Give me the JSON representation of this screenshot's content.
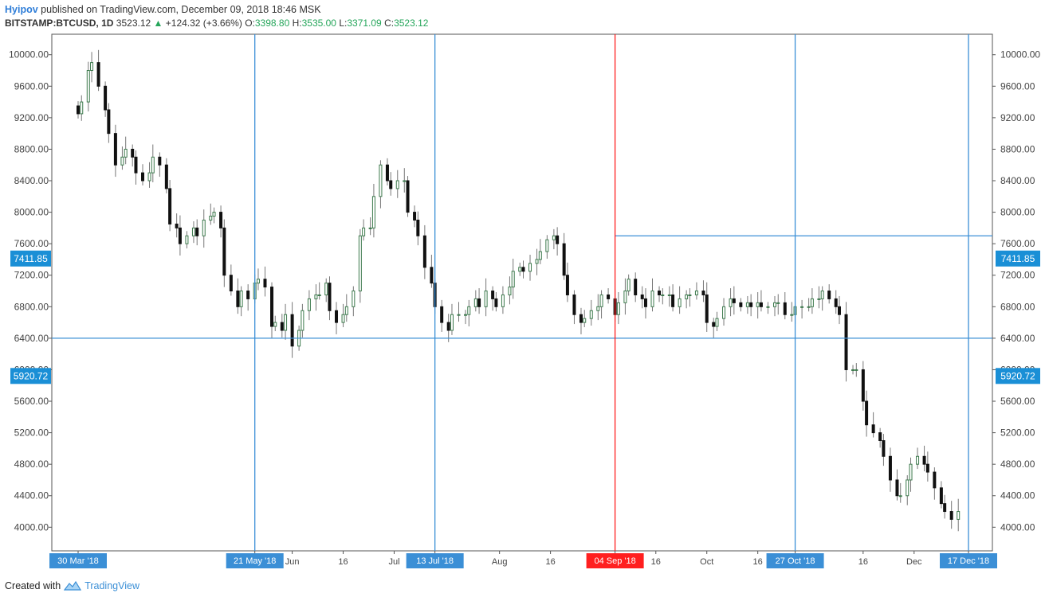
{
  "header": {
    "author": "Hyipov",
    "published_text": " published on TradingView.com, December 09, 2018 18:46 MSK",
    "symbol": "BITSTAMP:BTCUSD, 1D",
    "last": "3523.12",
    "arrow": "▲",
    "change": "+124.32 (+3.66%)",
    "o_label": "O:",
    "o_value": "3398.80",
    "h_label": "H:",
    "h_value": "3535.00",
    "l_label": "L:",
    "l_value": "3371.09",
    "c_label": "C:",
    "c_value": "3523.12"
  },
  "footer": {
    "created_with": "Created with",
    "brand": "TradingView",
    "logo_icon": "tradingview-logo-icon"
  },
  "colors": {
    "up_fill": "#ffffff",
    "up_border": "#3d7a4d",
    "down": "#111111",
    "wick": "#777777",
    "blue_line": "#3b8fd6",
    "red_line": "#ff1f1f",
    "label_bg": "#3b8fd6",
    "price_label_bg": "#1a8fd6"
  },
  "chart_data": {
    "type": "candlestick",
    "symbol": "BITSTAMP:BTCUSD",
    "interval": "1D",
    "ylim": [
      3700,
      10260
    ],
    "y_ticks": [
      "10000.00",
      "9600.00",
      "9200.00",
      "8800.00",
      "8400.00",
      "8000.00",
      "7600.00",
      "7200.00",
      "6800.00",
      "6400.00",
      "6000.00",
      "5600.00",
      "5200.00",
      "4800.00",
      "4400.00",
      "4000.00"
    ],
    "x_ticks": [
      {
        "label": "30 Mar '18",
        "date": "2018-03-30",
        "highlight": "blue"
      },
      {
        "label": "21 May '18",
        "date": "2018-05-21",
        "highlight": "blue"
      },
      {
        "label": "Jun",
        "date": "2018-06-01"
      },
      {
        "label": "16",
        "date": "2018-06-16"
      },
      {
        "label": "Jul",
        "date": "2018-07-01"
      },
      {
        "label": "13 Jul '18",
        "date": "2018-07-13",
        "highlight": "blue"
      },
      {
        "label": "Aug",
        "date": "2018-08-01"
      },
      {
        "label": "16",
        "date": "2018-08-16"
      },
      {
        "label": "04 Sep '18",
        "date": "2018-09-04",
        "highlight": "red"
      },
      {
        "label": "16",
        "date": "2018-09-16"
      },
      {
        "label": "Oct",
        "date": "2018-10-01"
      },
      {
        "label": "16",
        "date": "2018-10-16"
      },
      {
        "label": "27 Oct '18",
        "date": "2018-10-27",
        "highlight": "blue"
      },
      {
        "label": "16",
        "date": "2018-11-16"
      },
      {
        "label": "Dec",
        "date": "2018-12-01"
      },
      {
        "label": "17 Dec '18",
        "date": "2018-12-17",
        "highlight": "blue"
      }
    ],
    "vertical_lines": [
      {
        "date": "2018-05-21",
        "color": "blue"
      },
      {
        "date": "2018-07-13",
        "color": "blue"
      },
      {
        "date": "2018-09-04",
        "color": "red"
      },
      {
        "date": "2018-10-27",
        "color": "blue"
      },
      {
        "date": "2018-12-17",
        "color": "blue"
      }
    ],
    "horizontal_lines": [
      {
        "price": 6400,
        "from": "start",
        "to": "end",
        "color": "blue"
      },
      {
        "price": 7700,
        "from": "2018-09-04",
        "to": "end",
        "color": "blue"
      }
    ],
    "price_labels": [
      {
        "value": "7411.85",
        "price": 7411.85
      },
      {
        "value": "5920.72",
        "price": 5920.72
      }
    ],
    "legend": "none",
    "grid": false,
    "closes": [
      9250,
      9400,
      9800,
      9900,
      9600,
      9300,
      9000,
      8600,
      8700,
      8800,
      8700,
      8500,
      8400,
      8500,
      8700,
      8600,
      8300,
      7850,
      7800,
      7600,
      7700,
      7800,
      7700,
      7900,
      7950,
      8000,
      7800,
      7200,
      7000,
      6800,
      7000,
      6900,
      7100,
      7150,
      7050,
      6550,
      6600,
      6500,
      6700,
      6300,
      6500,
      6750,
      6900,
      6950,
      6950,
      7100,
      6750,
      6600,
      6700,
      6800,
      7000,
      7700,
      7800,
      7800,
      8200,
      8600,
      8400,
      8300,
      8400,
      8400,
      8000,
      7900,
      7700,
      7300,
      7100,
      6800,
      6600,
      6500,
      6700,
      6700,
      6700,
      6800,
      6900,
      6800,
      7000,
      6900,
      6800,
      6950,
      7050,
      7250,
      7300,
      7250,
      7350,
      7400,
      7500,
      7650,
      7700,
      7600,
      7200,
      6950,
      6700,
      6600,
      6650,
      6750,
      6800,
      6950,
      6900,
      6700,
      6850,
      7000,
      7150,
      6950,
      6900,
      6800,
      7000,
      6950,
      6950,
      6950,
      6800,
      6900,
      6950,
      6950,
      7000,
      6950,
      6600,
      6550,
      6650,
      6800,
      6900,
      6850,
      6800,
      6850,
      6800,
      6850,
      6800,
      6800,
      6850,
      6850,
      6700,
      6700,
      6800,
      6800,
      6800,
      6900,
      6900,
      7000,
      6900,
      6800,
      6700,
      6000,
      6000,
      6000,
      5600,
      5300,
      5200,
      5100,
      4900,
      4600,
      4400,
      4400,
      4600,
      4800,
      4900,
      4800,
      4700,
      4500,
      4300,
      4200,
      4100,
      4200
    ]
  }
}
